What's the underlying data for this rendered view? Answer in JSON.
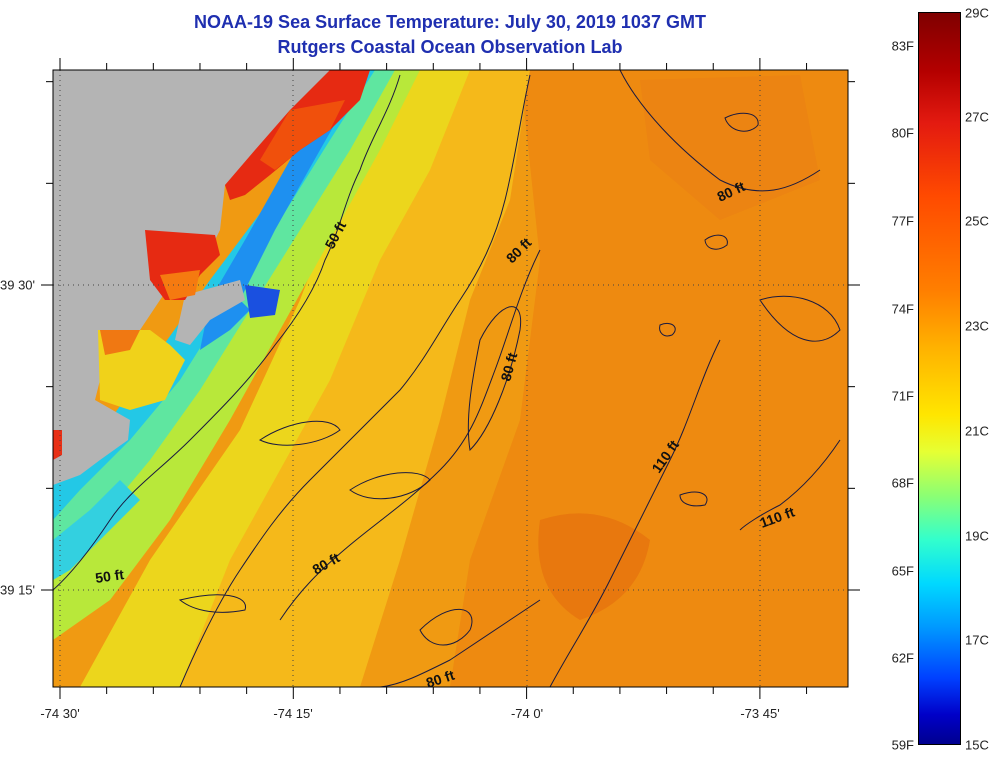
{
  "title": {
    "line1": "NOAA-19 Sea Surface Temperature:  July 30, 2019 1037 GMT",
    "line2": "Rutgers Coastal Ocean Observation Lab"
  },
  "map": {
    "longitude_ticks": [
      "-74 30'",
      "-74 15'",
      "-74 0'",
      "-73 45'"
    ],
    "latitude_ticks": [
      "39 30'",
      "39 15'"
    ],
    "contour_labels": [
      "50 ft",
      "50 ft",
      "80 ft",
      "80 ft",
      "80 ft",
      "80 ft",
      "80 ft",
      "110 ft",
      "110 ft"
    ],
    "colors": {
      "land": "#b4b4b4",
      "contour": "#1a1a40",
      "grid": "#444444"
    }
  },
  "colorbar": {
    "fahrenheit_labels": [
      "83F",
      "80F",
      "77F",
      "74F",
      "71F",
      "68F",
      "65F",
      "62F",
      "59F"
    ],
    "celsius_labels": [
      "29C",
      "27C",
      "25C",
      "23C",
      "21C",
      "19C",
      "17C",
      "15C"
    ],
    "range_c": [
      15,
      29
    ],
    "range_f": [
      59,
      84.2
    ]
  }
}
